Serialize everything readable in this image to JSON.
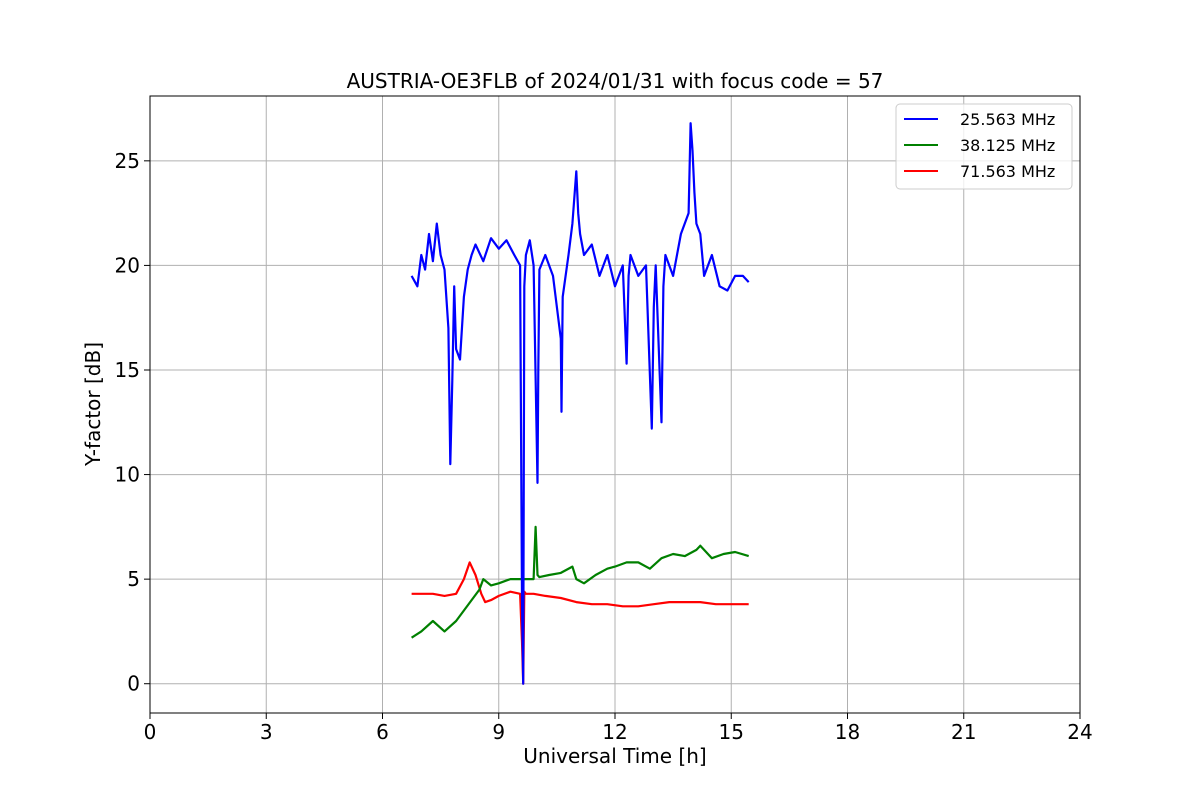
{
  "chart_data": {
    "type": "line",
    "title": "AUSTRIA-OE3FLB of 2024/01/31 with focus code = 57",
    "xlabel": "Universal Time [h]",
    "ylabel": "Y-factor [dB]",
    "xlim": [
      0,
      24
    ],
    "ylim": [
      -1.4,
      28.1
    ],
    "xticks": [
      0,
      3,
      6,
      9,
      12,
      15,
      18,
      21,
      24
    ],
    "yticks": [
      0,
      5,
      10,
      15,
      20,
      25
    ],
    "grid": true,
    "legend_position": "top-right",
    "series": [
      {
        "name": "25.563 MHz",
        "color": "#0000ff",
        "x": [
          6.75,
          6.9,
          7.0,
          7.1,
          7.2,
          7.3,
          7.4,
          7.5,
          7.6,
          7.7,
          7.75,
          7.8,
          7.85,
          7.9,
          8.0,
          8.1,
          8.2,
          8.3,
          8.4,
          8.6,
          8.8,
          9.0,
          9.2,
          9.4,
          9.55,
          9.6,
          9.63,
          9.66,
          9.7,
          9.8,
          9.9,
          10.0,
          10.02,
          10.05,
          10.2,
          10.4,
          10.6,
          10.62,
          10.65,
          10.8,
          10.9,
          11.0,
          11.05,
          11.1,
          11.2,
          11.4,
          11.6,
          11.8,
          12.0,
          12.2,
          12.3,
          12.35,
          12.4,
          12.6,
          12.8,
          12.95,
          13.0,
          13.05,
          13.2,
          13.25,
          13.3,
          13.5,
          13.7,
          13.9,
          13.95,
          14.0,
          14.05,
          14.1,
          14.2,
          14.3,
          14.5,
          14.7,
          14.9,
          15.1,
          15.3,
          15.45
        ],
        "y": [
          19.5,
          19.0,
          20.5,
          19.8,
          21.5,
          20.2,
          22.0,
          20.5,
          19.8,
          17.0,
          10.5,
          14.5,
          19.0,
          16.0,
          15.5,
          18.5,
          19.8,
          20.5,
          21.0,
          20.2,
          21.3,
          20.8,
          21.2,
          20.5,
          20.0,
          4.0,
          0.0,
          19.0,
          20.5,
          21.2,
          20.0,
          9.6,
          15.0,
          19.8,
          20.5,
          19.5,
          16.5,
          13.0,
          18.5,
          20.5,
          22.0,
          24.5,
          22.5,
          21.5,
          20.5,
          21.0,
          19.5,
          20.5,
          19.0,
          20.0,
          15.3,
          19.5,
          20.5,
          19.5,
          20.0,
          12.2,
          18.0,
          20.0,
          12.5,
          19.0,
          20.5,
          19.5,
          21.5,
          22.5,
          26.8,
          25.5,
          23.5,
          22.0,
          21.5,
          19.5,
          20.5,
          19.0,
          18.8,
          19.5,
          19.5,
          19.2
        ]
      },
      {
        "name": "38.125 MHz",
        "color": "#008000",
        "x": [
          6.75,
          7.0,
          7.3,
          7.6,
          7.9,
          8.1,
          8.3,
          8.5,
          8.6,
          8.8,
          9.0,
          9.3,
          9.6,
          9.9,
          9.95,
          10.0,
          10.05,
          10.3,
          10.6,
          10.9,
          11.0,
          11.2,
          11.5,
          11.8,
          12.0,
          12.3,
          12.6,
          12.9,
          13.2,
          13.5,
          13.8,
          14.1,
          14.2,
          14.5,
          14.8,
          15.1,
          15.45
        ],
        "y": [
          2.2,
          2.5,
          3.0,
          2.5,
          3.0,
          3.5,
          4.0,
          4.5,
          5.0,
          4.7,
          4.8,
          5.0,
          5.0,
          5.0,
          7.5,
          5.2,
          5.1,
          5.2,
          5.3,
          5.6,
          5.0,
          4.8,
          5.2,
          5.5,
          5.6,
          5.8,
          5.8,
          5.5,
          6.0,
          6.2,
          6.1,
          6.4,
          6.6,
          6.0,
          6.2,
          6.3,
          6.1
        ]
      },
      {
        "name": "71.563 MHz",
        "color": "#ff0000",
        "x": [
          6.75,
          7.0,
          7.3,
          7.6,
          7.9,
          8.1,
          8.25,
          8.4,
          8.55,
          8.65,
          8.8,
          9.0,
          9.3,
          9.55,
          9.6,
          9.63,
          9.66,
          9.7,
          9.9,
          10.2,
          10.6,
          11.0,
          11.4,
          11.8,
          12.2,
          12.6,
          13.0,
          13.4,
          13.8,
          14.2,
          14.6,
          15.0,
          15.45
        ],
        "y": [
          4.3,
          4.3,
          4.3,
          4.2,
          4.3,
          5.0,
          5.8,
          5.2,
          4.3,
          3.9,
          4.0,
          4.2,
          4.4,
          4.3,
          2.0,
          0.0,
          4.4,
          4.3,
          4.3,
          4.2,
          4.1,
          3.9,
          3.8,
          3.8,
          3.7,
          3.7,
          3.8,
          3.9,
          3.9,
          3.9,
          3.8,
          3.8,
          3.8
        ]
      }
    ]
  }
}
